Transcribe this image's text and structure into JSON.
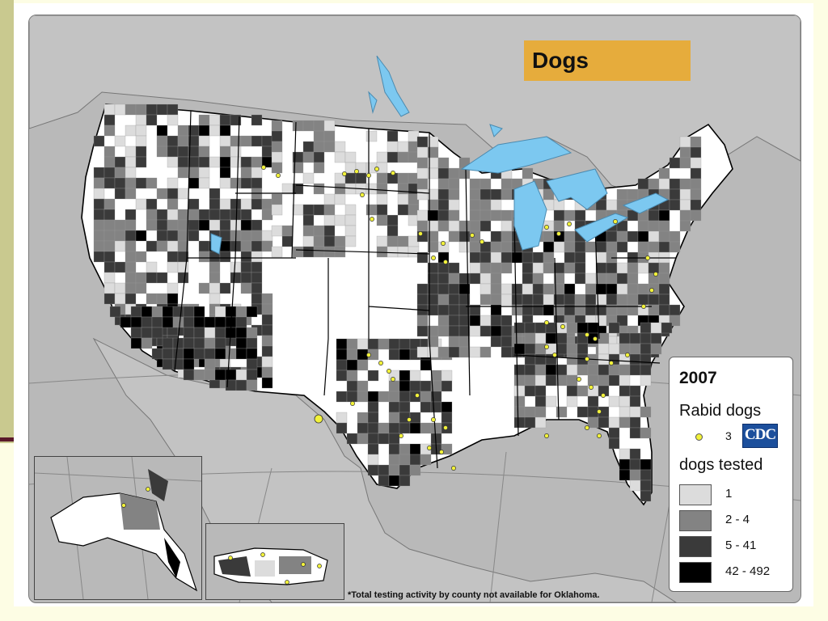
{
  "title": "Dogs",
  "legend": {
    "year": "2007",
    "rabid_label": "Rabid dogs",
    "rabid_example_count": "3",
    "logo_text": "CDC",
    "tested_label": "dogs tested",
    "classes": [
      {
        "label": "1",
        "color": "#dcdcdc"
      },
      {
        "label": "2 - 4",
        "color": "#838383"
      },
      {
        "label": "5 - 41",
        "color": "#3a3a3a"
      },
      {
        "label": "42 - 492",
        "color": "#000000"
      }
    ]
  },
  "footnote": "*Total testing activity by county not available for Oklahoma.",
  "colors": {
    "water": "#7cc8f0",
    "land_outside": "#b9b9b9",
    "no_data": "#ffffff",
    "rabid_dot": "#f2f23a",
    "title_bg": "#e6ac3c"
  }
}
